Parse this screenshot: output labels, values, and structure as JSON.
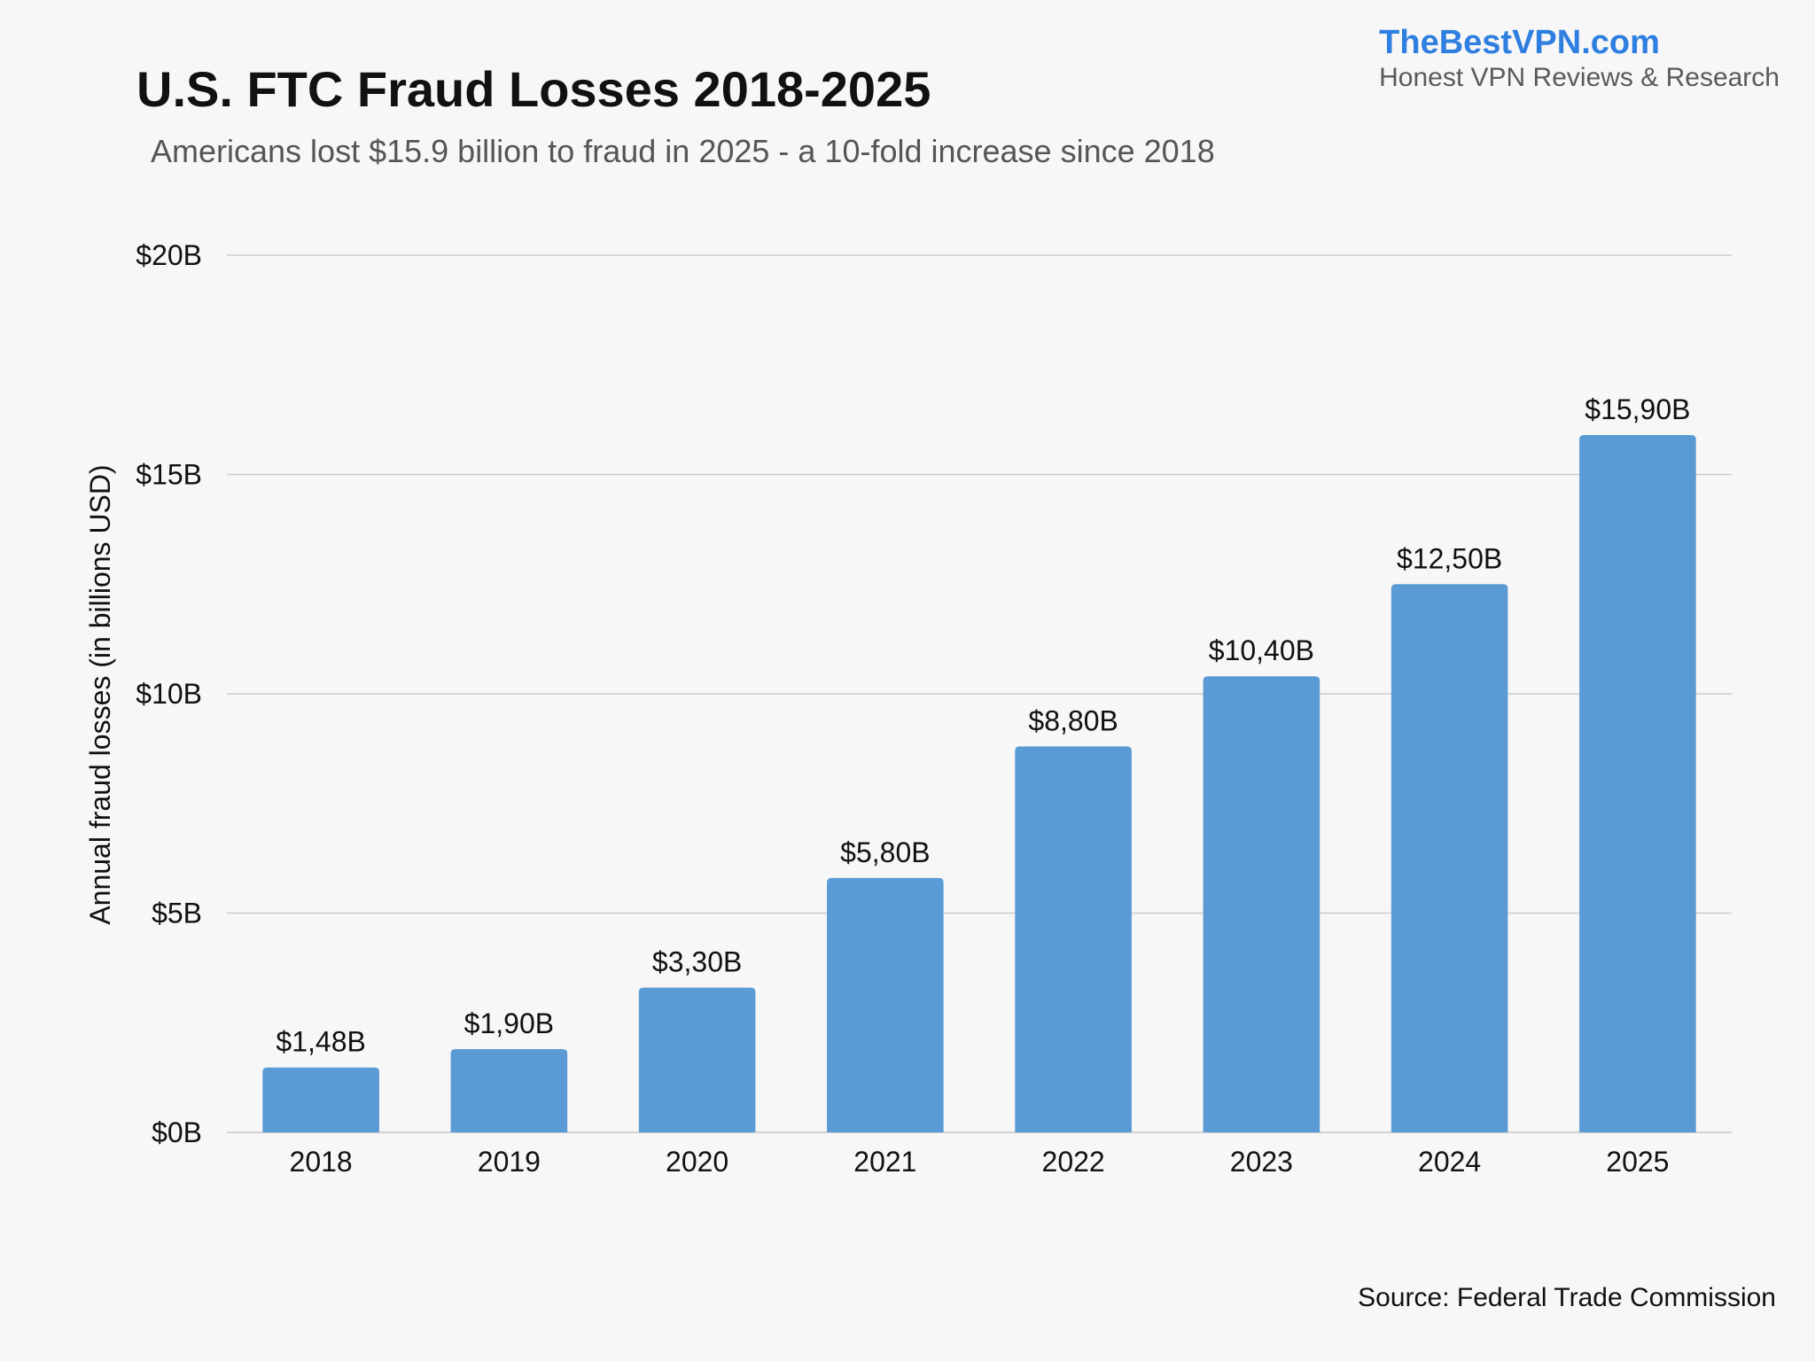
{
  "brand": {
    "name": "TheBestVPN.com",
    "tagline": "Honest VPN Reviews & Research"
  },
  "source": "Source: Federal Trade Commission",
  "colors": {
    "bar": "#5b9bd5",
    "brand": "#2f7fe0",
    "background": "#f8f7f7",
    "grid": "#cccccc"
  },
  "chart_data": {
    "type": "bar",
    "title": "U.S. FTC Fraud Losses 2018-2025",
    "subtitle": "Americans lost $15.9 billion to fraud in 2025 - a 10-fold increase since 2018",
    "xlabel": "",
    "ylabel": "Annual fraud losses (in billions USD)",
    "ylim": [
      0,
      20
    ],
    "yticks": [
      0,
      5,
      10,
      15,
      20
    ],
    "ytick_labels": [
      "$0B",
      "$5B",
      "$10B",
      "$15B",
      "$20B"
    ],
    "grid": true,
    "categories": [
      "2018",
      "2019",
      "2020",
      "2021",
      "2022",
      "2023",
      "2024",
      "2025"
    ],
    "values": [
      1.48,
      1.9,
      3.3,
      5.8,
      8.8,
      10.4,
      12.5,
      15.9
    ],
    "data_labels": [
      "$1,48B",
      "$1,90B",
      "$3,30B",
      "$5,80B",
      "$8,80B",
      "$10,40B",
      "$12,50B",
      "$15,90B"
    ]
  }
}
